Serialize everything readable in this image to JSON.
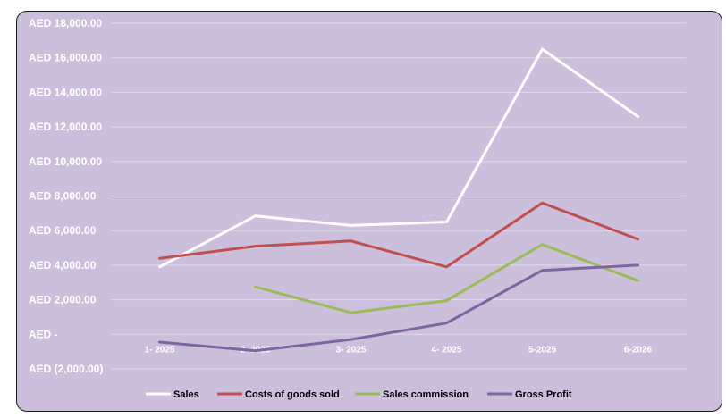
{
  "chart_data": {
    "type": "line",
    "title": "",
    "xlabel": "",
    "ylabel": "",
    "categories": [
      "1- 2025",
      "2- 2025",
      "3- 2025",
      "4- 2025",
      "5-2025",
      "6-2026"
    ],
    "y_tick_labels": [
      "AED (2,000.00)",
      "AED -",
      "AED 2,000.00",
      "AED 4,000.00",
      "AED 6,000.00",
      "AED 8,000.00",
      "AED 10,000.00",
      "AED 12,000.00",
      "AED 14,000.00",
      "AED 16,000.00",
      "AED 18,000.00"
    ],
    "ylim": [
      -2000,
      18000
    ],
    "grid": true,
    "legend_position": "bottom",
    "series": [
      {
        "name": "Sales",
        "color": "#ffffff",
        "values": [
          3900,
          6850,
          6300,
          6500,
          16500,
          12600
        ]
      },
      {
        "name": "Costs of goods sold",
        "color": "#c0504d",
        "values": [
          4400,
          5100,
          5400,
          3900,
          7600,
          5500
        ]
      },
      {
        "name": "Sales commission",
        "color": "#9bbb59",
        "values": [
          null,
          2750,
          1250,
          1950,
          5200,
          3100
        ]
      },
      {
        "name": "Gross Profit",
        "color": "#8064a2",
        "values": [
          -450,
          -950,
          -300,
          650,
          3700,
          4000
        ]
      }
    ]
  }
}
